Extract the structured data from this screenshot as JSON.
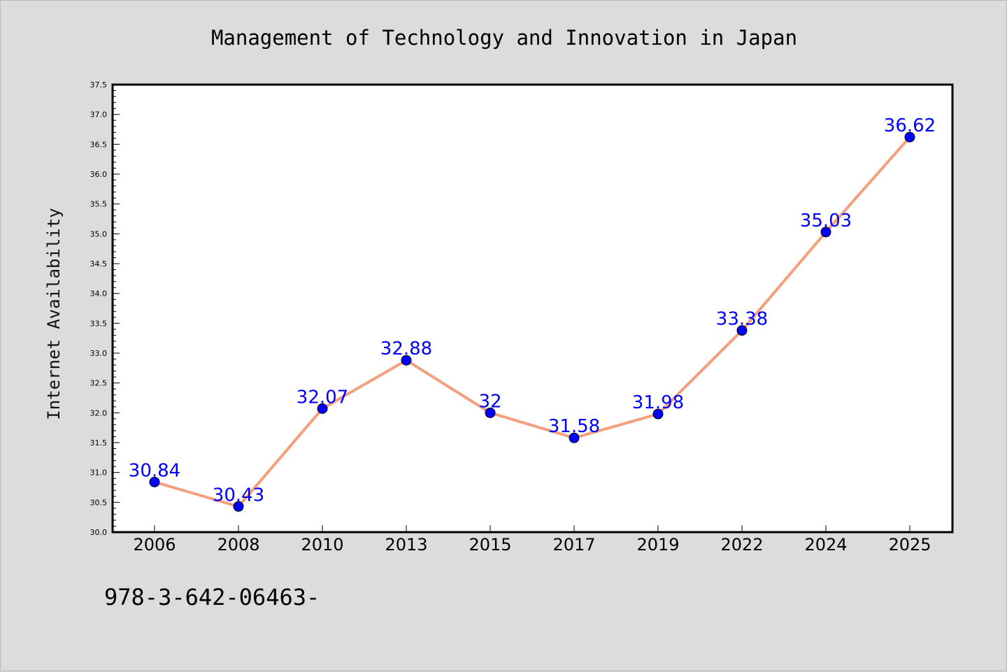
{
  "colors": {
    "background": "#dcdcdc",
    "plot_background": "#ffffff",
    "line": "#f4a07c",
    "marker": "#0000ff",
    "data_label": "#0000ff"
  },
  "footer_text": "978-3-642-06463-",
  "chart_data": {
    "type": "line",
    "title": "Management of Technology and Innovation in Japan",
    "xlabel": "",
    "ylabel": "Internet Availability",
    "categories": [
      "2006",
      "2008",
      "2010",
      "2013",
      "2015",
      "2017",
      "2019",
      "2022",
      "2024",
      "2025"
    ],
    "series": [
      {
        "values": [
          30.84,
          30.43,
          32.07,
          32.88,
          32,
          31.58,
          31.98,
          33.38,
          35.03,
          36.62
        ],
        "labels": [
          "30.84",
          "30.43",
          "32.07",
          "32.88",
          "32",
          "31.58",
          "31.98",
          "33.38",
          "35.03",
          "36.62"
        ]
      }
    ],
    "ylim": [
      30.0,
      37.5
    ],
    "yticks": [
      "30.0",
      "30.5",
      "31.0",
      "31.5",
      "32.0",
      "32.5",
      "33.0",
      "33.5",
      "34.0",
      "34.5",
      "35.0",
      "35.5",
      "36.0",
      "36.5",
      "37.0",
      "37.5"
    ],
    "grid": false,
    "legend": "none",
    "data_labels": true
  }
}
